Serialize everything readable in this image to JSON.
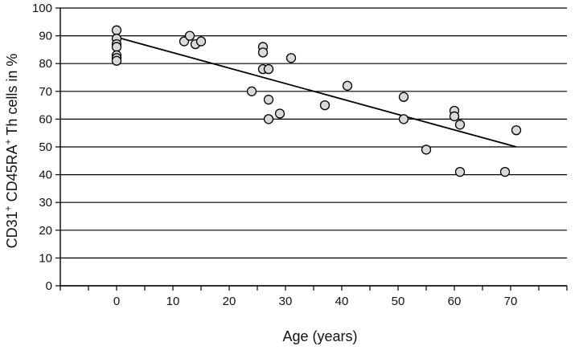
{
  "chart_data": {
    "type": "scatter",
    "title": "",
    "xlabel": "Age (years)",
    "ylabel_parts": [
      "CD31",
      "+",
      " CD45RA",
      "+",
      " Th cells in %"
    ],
    "xlim": [
      -10,
      80
    ],
    "ylim": [
      0,
      100
    ],
    "x_ticks": [
      0,
      10,
      20,
      30,
      40,
      50,
      60,
      70
    ],
    "y_ticks": [
      0,
      10,
      20,
      30,
      40,
      50,
      60,
      70,
      80,
      90,
      100
    ],
    "grid": "horizontal",
    "legend": "none",
    "point_fill": "#d9d9d9",
    "point_stroke": "#000000",
    "points": [
      {
        "x": 0,
        "y": 92
      },
      {
        "x": 0,
        "y": 89
      },
      {
        "x": 0,
        "y": 87
      },
      {
        "x": 0,
        "y": 86
      },
      {
        "x": 0,
        "y": 83
      },
      {
        "x": 0,
        "y": 82
      },
      {
        "x": 0,
        "y": 81
      },
      {
        "x": 12,
        "y": 88
      },
      {
        "x": 13,
        "y": 90
      },
      {
        "x": 14,
        "y": 87
      },
      {
        "x": 15,
        "y": 88
      },
      {
        "x": 24,
        "y": 70
      },
      {
        "x": 26,
        "y": 86
      },
      {
        "x": 26,
        "y": 84
      },
      {
        "x": 26,
        "y": 78
      },
      {
        "x": 27,
        "y": 78
      },
      {
        "x": 27,
        "y": 67
      },
      {
        "x": 27,
        "y": 60
      },
      {
        "x": 29,
        "y": 62
      },
      {
        "x": 31,
        "y": 82
      },
      {
        "x": 37,
        "y": 65
      },
      {
        "x": 41,
        "y": 72
      },
      {
        "x": 51,
        "y": 68
      },
      {
        "x": 51,
        "y": 60
      },
      {
        "x": 55,
        "y": 49
      },
      {
        "x": 60,
        "y": 63
      },
      {
        "x": 60,
        "y": 61
      },
      {
        "x": 61,
        "y": 58
      },
      {
        "x": 61,
        "y": 41
      },
      {
        "x": 69,
        "y": 41
      },
      {
        "x": 71,
        "y": 56
      }
    ],
    "trendline": {
      "x": [
        0,
        71
      ],
      "y": [
        89.5,
        50
      ]
    }
  }
}
